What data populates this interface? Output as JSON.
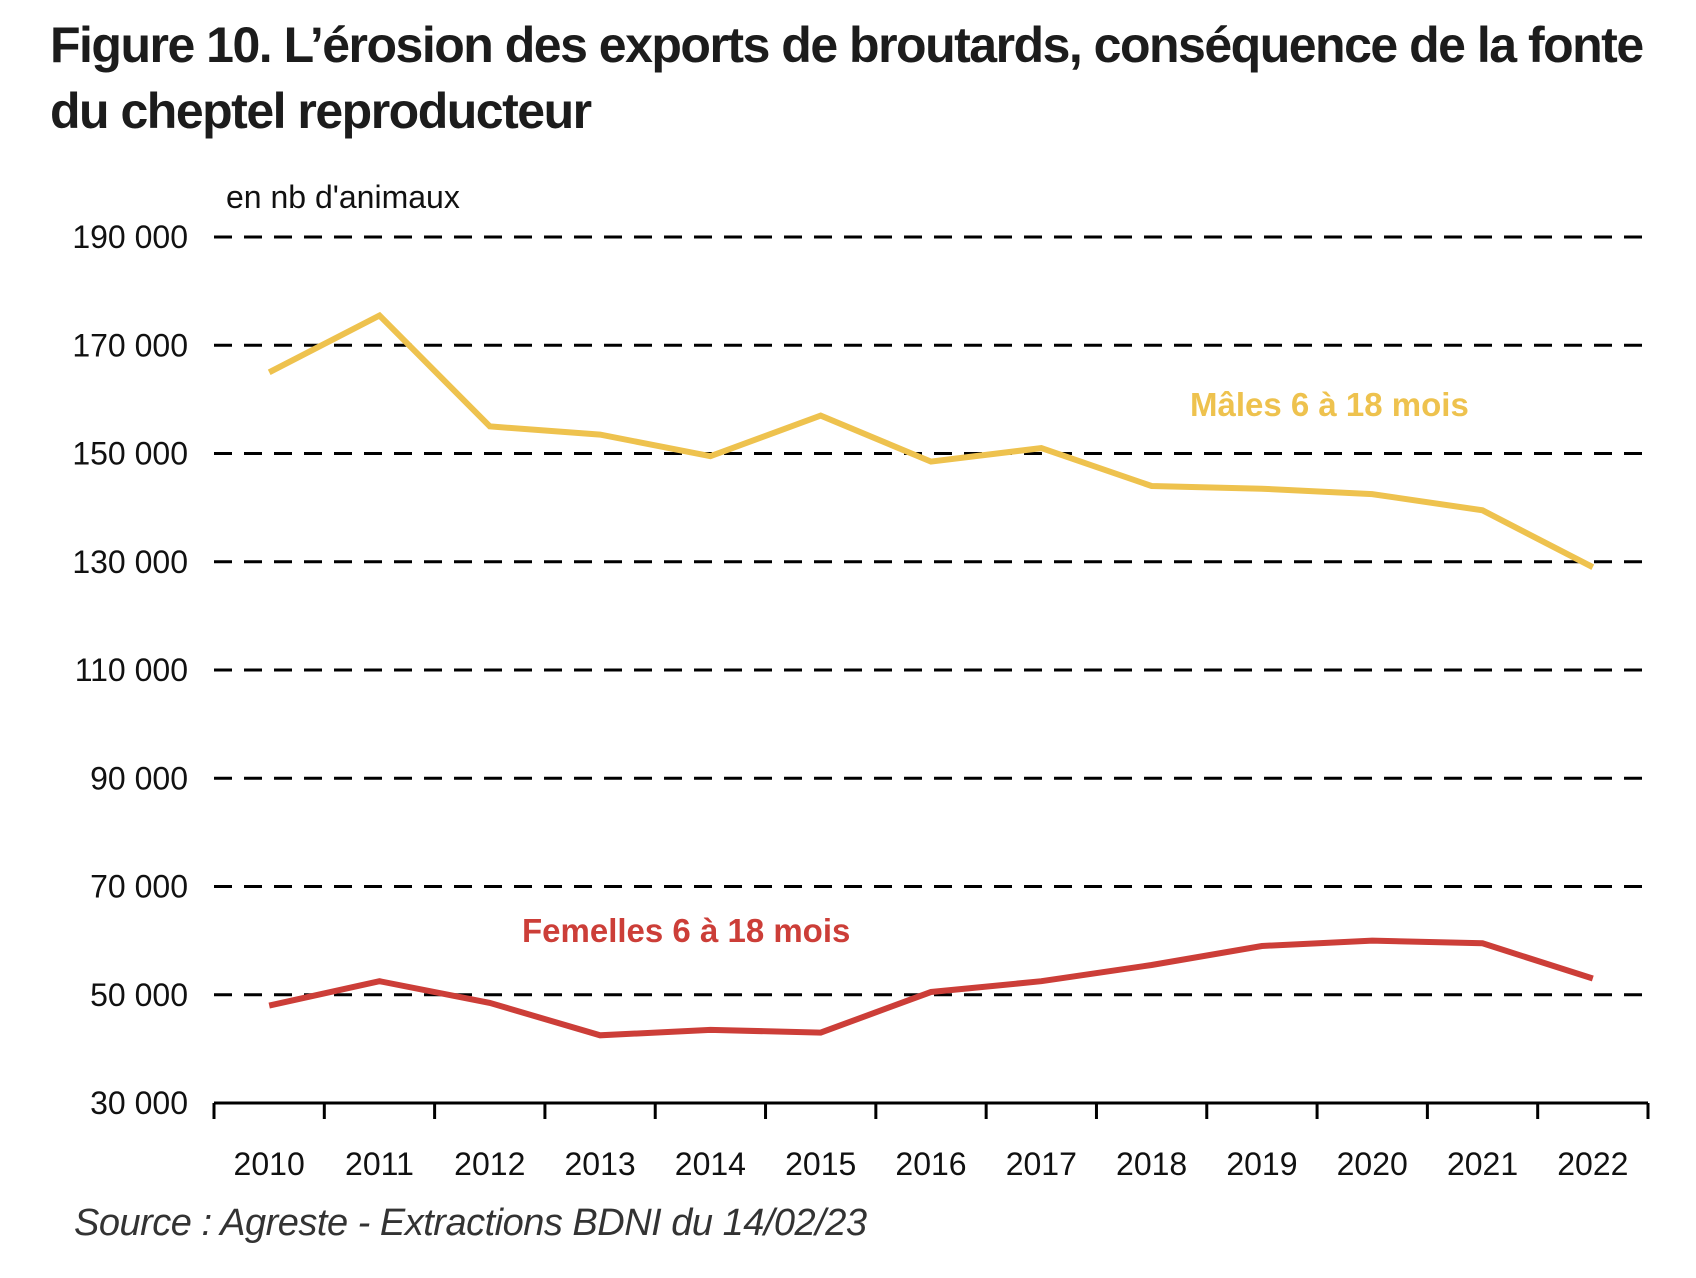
{
  "title": "Figure 10. L’érosion des exports de broutards, conséquence de la fonte du cheptel reproducteur",
  "source": "Source : Agreste - Extractions BDNI du 14/02/23",
  "colors": {
    "males": "#EEC24E",
    "femelles": "#CC3E38",
    "grid": "#000000"
  },
  "chart_data": {
    "type": "line",
    "title": "Figure 10. L’érosion des exports de broutards, conséquence de la fonte du cheptel reproducteur",
    "ylabel": "en nb d'animaux",
    "xlabel": "",
    "categories": [
      "2010",
      "2011",
      "2012",
      "2013",
      "2014",
      "2015",
      "2016",
      "2017",
      "2018",
      "2019",
      "2020",
      "2021",
      "2022"
    ],
    "ylim": [
      30000,
      190000
    ],
    "yticks": [
      30000,
      50000,
      70000,
      90000,
      110000,
      130000,
      150000,
      170000,
      190000
    ],
    "ytick_labels": [
      "30 000",
      "50 000",
      "70 000",
      "90 000",
      "110 000",
      "130 000",
      "150 000",
      "170 000",
      "190 000"
    ],
    "grid": true,
    "grid_style": "dashed",
    "legend": "inline labels",
    "series": [
      {
        "name": "Mâles 6 à 18 mois",
        "color": "#EEC24E",
        "values": [
          165000,
          175500,
          155000,
          153500,
          149500,
          157000,
          148500,
          151000,
          144000,
          143500,
          142500,
          139500,
          129000
        ]
      },
      {
        "name": "Femelles 6 à 18 mois",
        "color": "#CC3E38",
        "values": [
          48000,
          52500,
          48500,
          42500,
          43500,
          43000,
          50500,
          52500,
          55500,
          59000,
          60000,
          59500,
          53000
        ]
      }
    ]
  }
}
